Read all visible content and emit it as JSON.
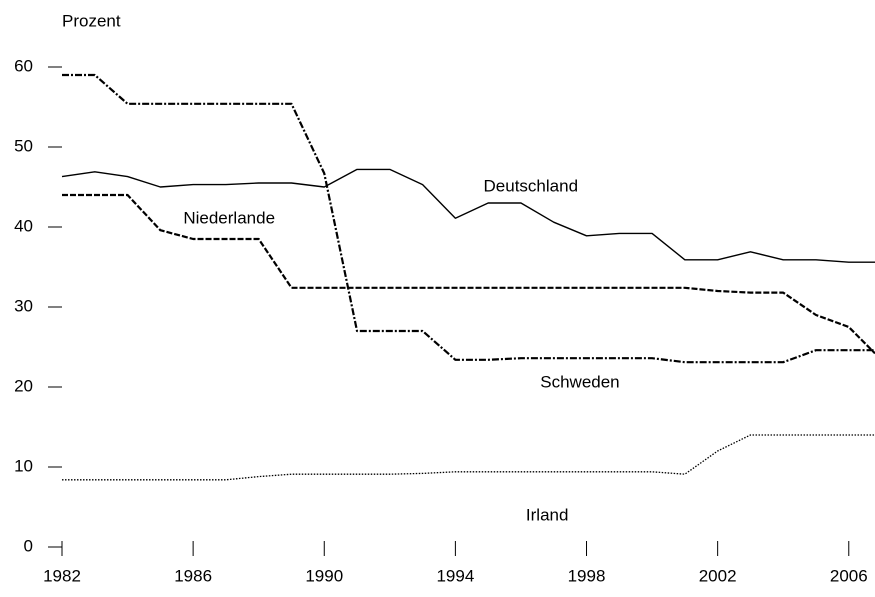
{
  "chart_data": {
    "type": "line",
    "y_label": "Prozent",
    "x": [
      1982,
      1983,
      1984,
      1985,
      1986,
      1987,
      1988,
      1989,
      1990,
      1991,
      1992,
      1993,
      1994,
      1995,
      1996,
      1997,
      1998,
      1999,
      2000,
      2001,
      2002,
      2003,
      2004,
      2005,
      2006,
      2006.8
    ],
    "series": [
      {
        "name": "Deutschland",
        "color": "#000000",
        "style": "solid",
        "values": [
          46.3,
          46.9,
          46.3,
          45,
          45.3,
          45.3,
          45.5,
          45.5,
          45,
          47.2,
          47.2,
          45.3,
          41.1,
          43,
          43,
          40.6,
          38.9,
          39.2,
          39.2,
          35.9,
          35.9,
          36.9,
          35.9,
          35.9,
          35.6,
          35.6
        ]
      },
      {
        "name": "Niederlande",
        "color": "#000000",
        "style": "dashed",
        "values": [
          44,
          44,
          44,
          39.6,
          38.5,
          38.5,
          38.5,
          32.4,
          32.4,
          32.4,
          32.4,
          32.4,
          32.4,
          32.4,
          32.4,
          32.4,
          32.4,
          32.4,
          32.4,
          32.4,
          32,
          31.8,
          31.8,
          29,
          27.5,
          24.2
        ]
      },
      {
        "name": "Schweden",
        "color": "#000000",
        "style": "dashdot",
        "values": [
          59,
          59,
          55.4,
          55.4,
          55.4,
          55.4,
          55.4,
          55.4,
          46.7,
          27,
          27,
          27,
          23.4,
          23.4,
          23.6,
          23.6,
          23.6,
          23.6,
          23.6,
          23.1,
          23.1,
          23.1,
          23.1,
          24.6,
          24.6,
          24.6
        ]
      },
      {
        "name": "Irland",
        "color": "#000000",
        "style": "dotted",
        "values": [
          8.4,
          8.4,
          8.4,
          8.4,
          8.4,
          8.4,
          8.8,
          9.1,
          9.1,
          9.1,
          9.1,
          9.2,
          9.4,
          9.4,
          9.4,
          9.4,
          9.4,
          9.4,
          9.4,
          9.1,
          12,
          14,
          14,
          14,
          14,
          14
        ]
      }
    ],
    "xlim": [
      1982,
      2006.8
    ],
    "xticks": [
      1982,
      1986,
      1990,
      1994,
      1998,
      2002,
      2006
    ],
    "ylim": [
      0,
      60
    ],
    "yticks": [
      0,
      10,
      20,
      30,
      40,
      50,
      60
    ],
    "grid": false
  }
}
